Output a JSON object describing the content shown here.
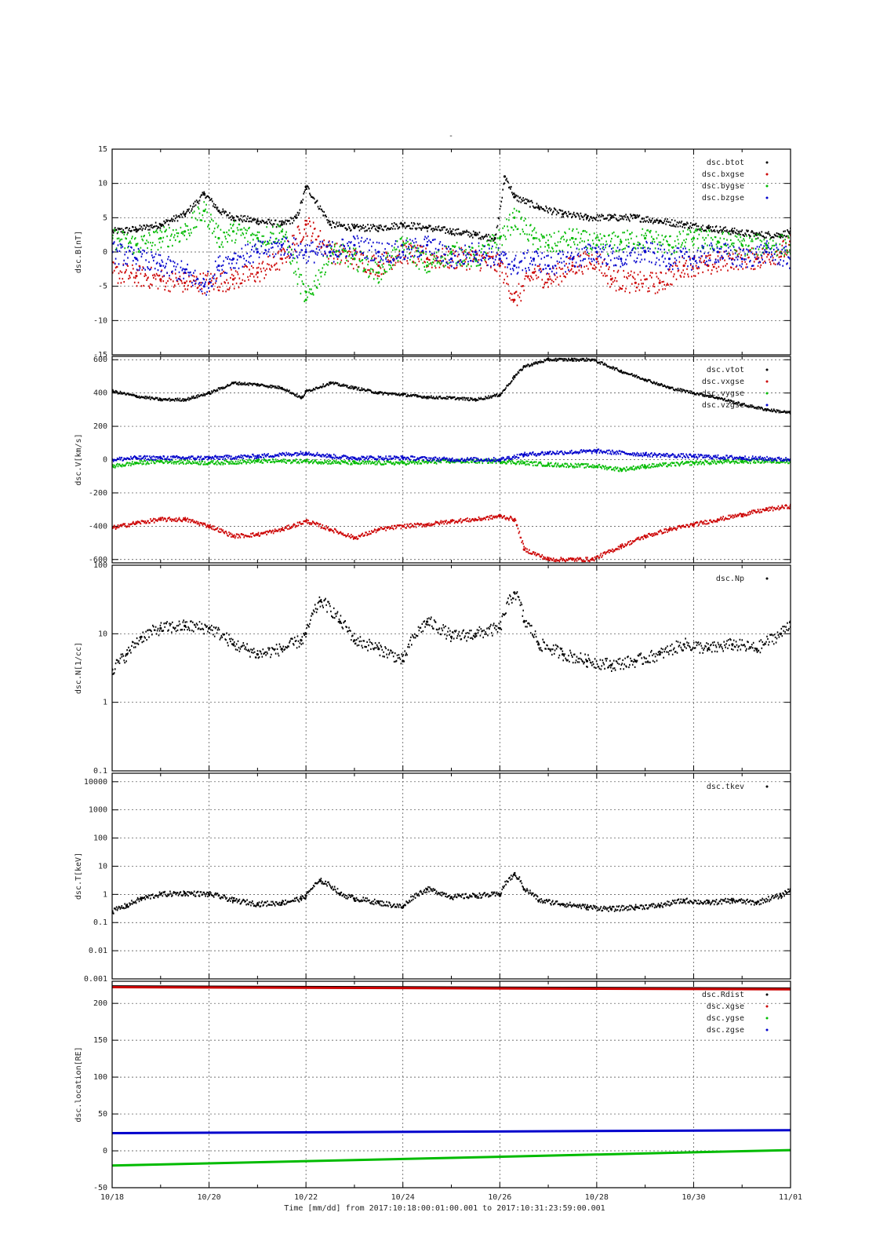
{
  "figure": {
    "top_mark": "-",
    "xlabel": "Time [mm/dd]  from 2017:10:18:00:01:00.001  to  2017:10:31:23:59:00.001",
    "x_ticks": [
      "10/18",
      "10/20",
      "10/22",
      "10/24",
      "10/26",
      "10/28",
      "10/30",
      "11/01"
    ]
  },
  "chart_data": [
    {
      "type": "scatter",
      "ylabel": "dsc.B[nT]",
      "ylim": [
        -15,
        15
      ],
      "yticks": [
        -15,
        -10,
        -5,
        0,
        5,
        10,
        15
      ],
      "ytick_labels": [
        "-15",
        "-10",
        "-5",
        "0",
        "5",
        "10",
        "15"
      ],
      "xlim_days": [
        0,
        14
      ],
      "grid": true,
      "legend_position": "top-right",
      "series": [
        {
          "name": "dsc.btot",
          "color": "#000000",
          "x": [
            0,
            0.5,
            1,
            1.5,
            1.9,
            2.2,
            2.5,
            3,
            3.5,
            3.8,
            4,
            4.5,
            5,
            5.5,
            6,
            6.5,
            7,
            7.5,
            7.9,
            8.1,
            8.3,
            8.8,
            9.3,
            9.8,
            10.3,
            10.8,
            11.3,
            11.8,
            12.3,
            12.8,
            13.3,
            13.8,
            14
          ],
          "y": [
            3,
            3.3,
            4,
            5.5,
            8.5,
            6,
            5,
            4.5,
            4,
            5,
            9.5,
            4,
            3.5,
            3.5,
            4,
            3.5,
            3,
            2.5,
            2,
            11,
            8,
            6.5,
            5.5,
            5,
            5,
            5,
            4.5,
            4,
            3.5,
            3,
            2.5,
            2.5,
            3
          ]
        },
        {
          "name": "dsc.bxgse",
          "color": "#cc0000",
          "x": [
            0,
            0.5,
            1,
            1.5,
            2,
            2.5,
            3,
            3.5,
            4,
            4.5,
            5,
            5.5,
            6,
            6.5,
            7,
            7.5,
            8,
            8.3,
            8.7,
            9,
            9.5,
            10,
            10.3,
            10.8,
            11.3,
            11.8,
            12.3,
            12.8,
            13.3,
            13.8,
            14
          ],
          "y": [
            -3,
            -3.5,
            -4,
            -4.5,
            -4.5,
            -4,
            -3,
            -1,
            4,
            0,
            -1,
            -2,
            0,
            -1,
            -1,
            -1,
            -2,
            -7,
            -3,
            -4,
            -2,
            -1,
            -4,
            -4.5,
            -4.5,
            -2,
            -2,
            -1,
            -1,
            0,
            1
          ]
        },
        {
          "name": "dsc.bygse",
          "color": "#00bb00",
          "x": [
            0,
            0.5,
            1,
            1.5,
            1.9,
            2.2,
            2.5,
            3,
            3.5,
            4,
            4.5,
            5,
            5.5,
            6,
            6.5,
            7,
            7.5,
            8,
            8.3,
            8.7,
            9,
            9.5,
            10,
            10.5,
            11,
            11.5,
            12,
            12.5,
            13,
            13.5,
            14
          ],
          "y": [
            2,
            1,
            2,
            3,
            6,
            2,
            3,
            2,
            3,
            -7,
            0,
            -1,
            -3,
            1,
            -2,
            0,
            -1,
            2,
            5,
            2,
            1,
            2,
            1,
            1.5,
            2,
            1,
            2,
            1.5,
            1,
            1,
            1
          ]
        },
        {
          "name": "dsc.bzgse",
          "color": "#0000cc",
          "x": [
            0,
            0.5,
            1,
            1.5,
            1.9,
            2.2,
            2.5,
            3,
            3.5,
            4,
            4.5,
            5,
            5.5,
            6,
            6.5,
            7,
            7.5,
            8,
            8.3,
            8.7,
            9,
            9.5,
            10,
            10.5,
            11,
            11.5,
            12,
            12.5,
            13,
            13.5,
            14
          ],
          "y": [
            0,
            -1,
            -2,
            -3,
            -5,
            -2,
            -1,
            0,
            1,
            0,
            0,
            1,
            0,
            0,
            1,
            -1,
            0,
            -1,
            -2,
            -1,
            -2,
            -1,
            0,
            -1,
            0,
            -1,
            -1,
            0,
            -1,
            0,
            -1
          ]
        }
      ]
    },
    {
      "type": "scatter",
      "ylabel": "dsc.V[km/s]",
      "ylim": [
        -620,
        620
      ],
      "yticks": [
        -600,
        -400,
        -200,
        0,
        200,
        400,
        600
      ],
      "ytick_labels": [
        "-600",
        "-400",
        "-200",
        "0",
        "200",
        "400",
        "600"
      ],
      "xlim_days": [
        0,
        14
      ],
      "grid": true,
      "legend_position": "top-right",
      "series": [
        {
          "name": "dsc.vtot",
          "color": "#000000",
          "x": [
            0,
            0.5,
            1,
            1.5,
            2,
            2.5,
            3,
            3.5,
            3.9,
            4,
            4.5,
            5,
            5.5,
            6,
            6.3,
            6.5,
            7,
            7.5,
            8,
            8.3,
            8.5,
            9,
            9.5,
            9.9,
            10.5,
            11,
            11.5,
            12,
            12.5,
            13,
            13.5,
            14
          ],
          "y": [
            410,
            380,
            360,
            360,
            400,
            460,
            450,
            430,
            370,
            410,
            460,
            430,
            400,
            390,
            380,
            375,
            370,
            360,
            390,
            500,
            560,
            600,
            600,
            600,
            530,
            480,
            430,
            400,
            370,
            330,
            300,
            280
          ]
        },
        {
          "name": "dsc.vxgse",
          "color": "#cc0000",
          "x": [
            0,
            0.5,
            1,
            1.5,
            2,
            2.5,
            3,
            3.5,
            4,
            4.5,
            5,
            5.5,
            6,
            6.5,
            7,
            7.5,
            8,
            8.3,
            8.5,
            9,
            9.5,
            9.9,
            10.5,
            11,
            11.5,
            12,
            12.5,
            13,
            13.5,
            14
          ],
          "y": [
            -410,
            -380,
            -360,
            -360,
            -400,
            -460,
            -450,
            -420,
            -370,
            -420,
            -470,
            -420,
            -400,
            -390,
            -370,
            -360,
            -340,
            -360,
            -540,
            -600,
            -600,
            -600,
            -520,
            -460,
            -420,
            -390,
            -360,
            -330,
            -300,
            -280
          ]
        },
        {
          "name": "dsc.vygse",
          "color": "#00bb00",
          "x": [
            0,
            0.5,
            1,
            2,
            3,
            4,
            5,
            6,
            7,
            8,
            8.5,
            9,
            10,
            10.5,
            11,
            12,
            13,
            14
          ],
          "y": [
            -40,
            -20,
            -10,
            -20,
            -10,
            -10,
            -20,
            -20,
            -10,
            -10,
            -20,
            -30,
            -40,
            -60,
            -40,
            -20,
            -10,
            -10
          ]
        },
        {
          "name": "dsc.vzgse",
          "color": "#0000cc",
          "x": [
            0,
            0.5,
            1,
            2,
            3,
            4,
            4.5,
            5,
            6,
            7,
            8,
            8.5,
            9,
            10,
            11,
            12,
            13,
            14
          ],
          "y": [
            0,
            10,
            10,
            10,
            20,
            40,
            20,
            10,
            10,
            0,
            0,
            30,
            40,
            50,
            30,
            20,
            10,
            0
          ]
        }
      ]
    },
    {
      "type": "scatter",
      "ylabel": "dsc.N[1/cc]",
      "yscale": "log",
      "ylim": [
        0.1,
        100
      ],
      "yticks": [
        0.1,
        1,
        10,
        100
      ],
      "ytick_labels": [
        "0.1",
        "1",
        "10",
        "100"
      ],
      "xlim_days": [
        0,
        14
      ],
      "grid": true,
      "legend_position": "top-right",
      "series": [
        {
          "name": "dsc.Np",
          "color": "#000000",
          "x": [
            0,
            0.3,
            0.6,
            1,
            1.5,
            2,
            2.5,
            3,
            3.5,
            3.9,
            4,
            4.3,
            4.7,
            5,
            5.5,
            6,
            6.5,
            7,
            7.5,
            8,
            8.3,
            8.5,
            8.8,
            9.3,
            9.8,
            10.3,
            10.8,
            11.3,
            11.8,
            12.3,
            12.8,
            13.3,
            13.8,
            14
          ],
          "y": [
            3,
            5,
            9,
            12,
            13,
            12,
            7,
            5,
            6,
            8,
            10,
            30,
            15,
            8,
            6,
            4,
            15,
            9,
            10,
            12,
            40,
            15,
            7,
            5,
            4,
            3.5,
            4,
            5,
            7,
            6,
            7,
            6,
            10,
            15
          ]
        }
      ]
    },
    {
      "type": "scatter",
      "ylabel": "dsc.T[keV]",
      "yscale": "log",
      "ylim": [
        0.001,
        20000
      ],
      "yticks": [
        0.001,
        0.01,
        0.1,
        1,
        10,
        100,
        1000,
        10000
      ],
      "ytick_labels": [
        "0.001",
        "0.01",
        "0.1",
        "1",
        "10",
        "100",
        "1000",
        "10000"
      ],
      "xlim_days": [
        0,
        14
      ],
      "grid": true,
      "legend_position": "top-right",
      "series": [
        {
          "name": "dsc.tkev",
          "color": "#000000",
          "x": [
            0,
            0.3,
            0.6,
            1,
            1.5,
            2,
            2.5,
            3,
            3.5,
            3.9,
            4,
            4.3,
            4.7,
            5,
            5.5,
            6,
            6.5,
            7,
            7.5,
            8,
            8.3,
            8.5,
            8.8,
            9.3,
            9.8,
            10.3,
            10.8,
            11.3,
            11.8,
            12.3,
            12.8,
            13.3,
            13.8,
            14
          ],
          "y": [
            0.25,
            0.4,
            0.7,
            1,
            1.1,
            1,
            0.6,
            0.45,
            0.5,
            0.7,
            0.9,
            3,
            1,
            0.7,
            0.5,
            0.35,
            1.5,
            0.8,
            0.9,
            1,
            5,
            1.5,
            0.6,
            0.45,
            0.35,
            0.3,
            0.35,
            0.4,
            0.6,
            0.5,
            0.6,
            0.5,
            0.9,
            1.5
          ]
        }
      ]
    },
    {
      "type": "line",
      "ylabel": "dsc.location[RE]",
      "ylim": [
        -50,
        230
      ],
      "yticks": [
        -50,
        0,
        50,
        100,
        150,
        200
      ],
      "ytick_labels": [
        "-50",
        "0",
        "50",
        "100",
        "150",
        "200"
      ],
      "xlim_days": [
        0,
        14
      ],
      "grid": true,
      "legend_position": "top-right",
      "series": [
        {
          "name": "dsc.Rdist",
          "color": "#000000",
          "x": [
            0,
            14
          ],
          "y": [
            223,
            220
          ]
        },
        {
          "name": "dsc.xgse",
          "color": "#cc0000",
          "x": [
            0,
            14
          ],
          "y": [
            222,
            219
          ]
        },
        {
          "name": "dsc.ygse",
          "color": "#00bb00",
          "x": [
            0,
            14
          ],
          "y": [
            -20,
            1
          ]
        },
        {
          "name": "dsc.zgse",
          "color": "#0000cc",
          "x": [
            0,
            14
          ],
          "y": [
            24,
            28
          ]
        }
      ]
    }
  ]
}
